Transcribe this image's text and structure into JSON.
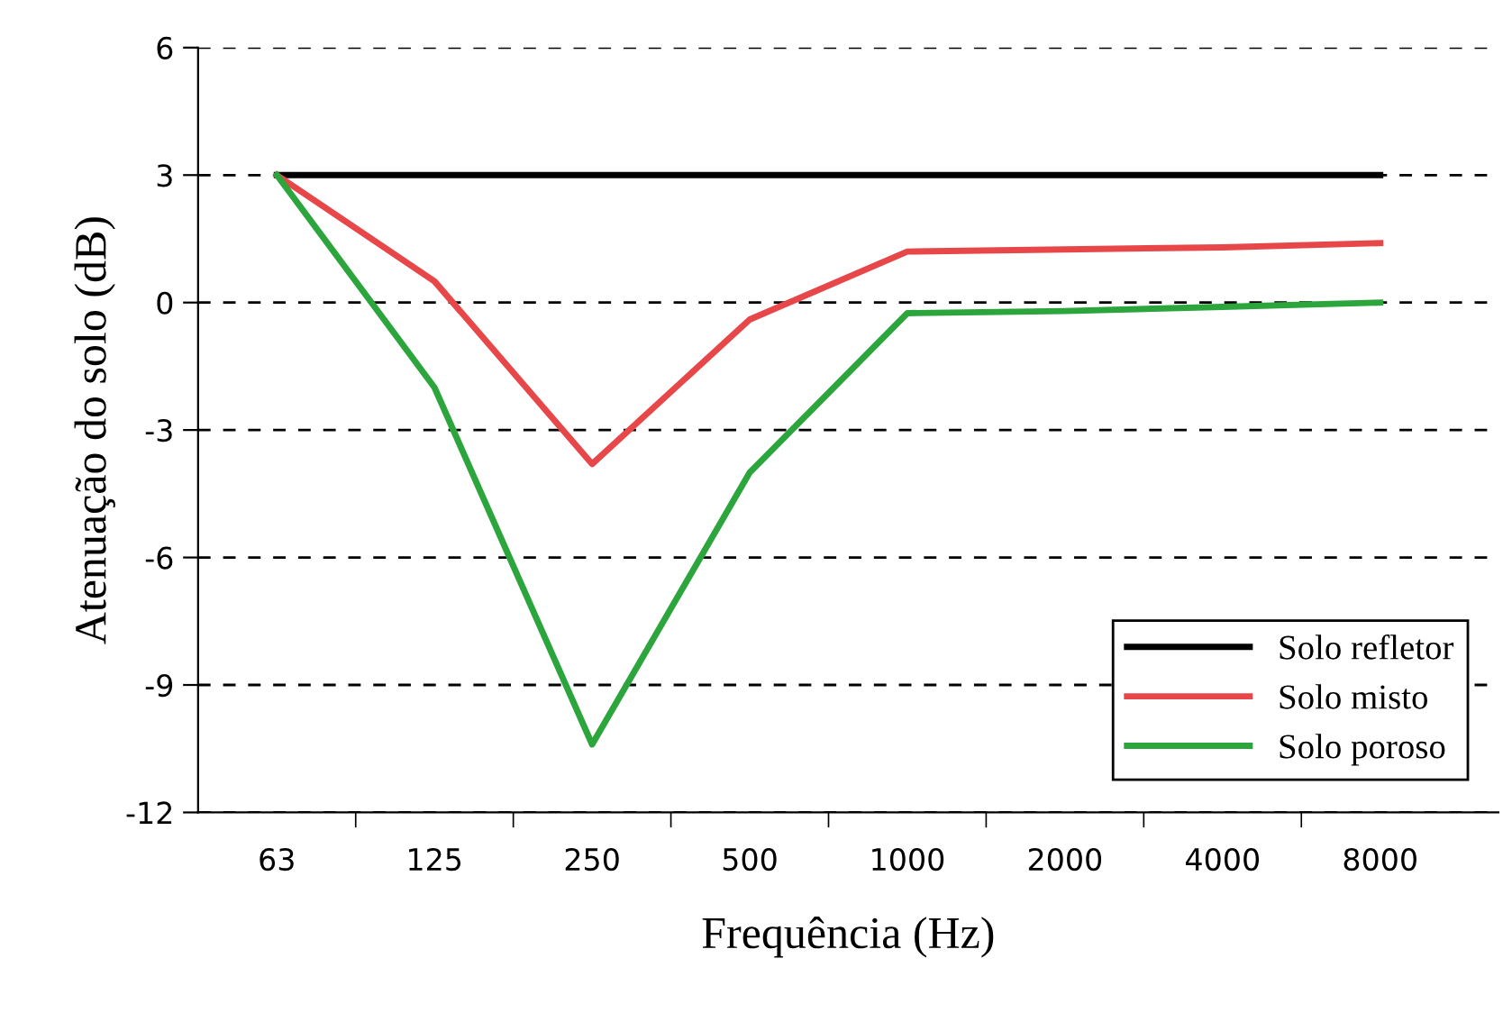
{
  "chart_data": {
    "type": "line",
    "xlabel": "Frequência (Hz)",
    "ylabel": "Atenuação do solo (dB)",
    "categories": [
      "63",
      "125",
      "250",
      "500",
      "1000",
      "2000",
      "4000",
      "8000"
    ],
    "series": [
      {
        "name": "Solo refletor",
        "color": "#000000",
        "values": [
          3,
          3,
          3,
          3,
          3,
          3,
          3,
          3
        ]
      },
      {
        "name": "Solo misto",
        "color": "#e8474a",
        "values": [
          3,
          0.5,
          -3.8,
          -0.4,
          1.2,
          1.25,
          1.3,
          1.4
        ]
      },
      {
        "name": "Solo poroso",
        "color": "#2ca53c",
        "values": [
          3,
          -2.0,
          -10.4,
          -4.0,
          -0.25,
          -0.2,
          -0.1,
          0
        ]
      }
    ],
    "ylim": [
      -12,
      6
    ],
    "yticks": [
      -12,
      -9,
      -6,
      -3,
      0,
      3,
      6
    ],
    "grid": "y",
    "legend": "bottom right",
    "marker": "none",
    "line_style": "solid"
  }
}
